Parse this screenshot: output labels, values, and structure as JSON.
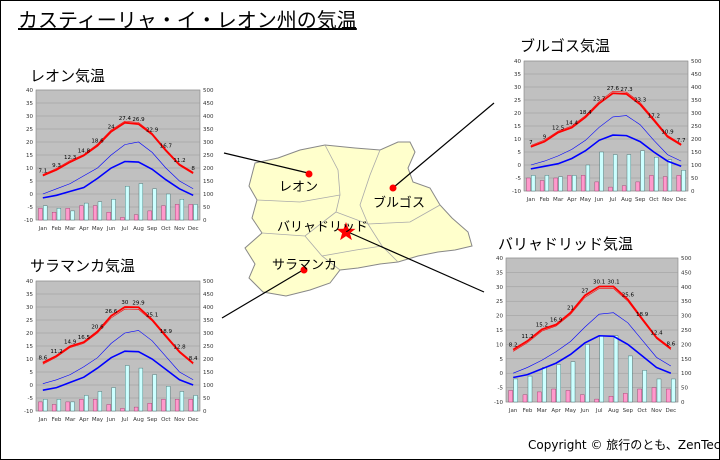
{
  "page": {
    "title": "カスティーリャ・イ・レオン州の気温",
    "copyright": "Copyright © 旅行のとも、ZenTech"
  },
  "map": {
    "cities": [
      "レオン",
      "ブルゴス",
      "バリャドリッド",
      "サラマンカ"
    ]
  },
  "colors": {
    "plot_bg": "#c0c0c0",
    "max_line": "#ff0000",
    "min_line": "#0000ff",
    "bar_light": "#ccffff",
    "bar_pink": "#ff99cc",
    "map_fill": "#ffffcc"
  },
  "chart_data": [
    {
      "type": "line",
      "title": "レオン気温",
      "categories": [
        "Jan",
        "Feb",
        "Mar",
        "Apr",
        "May",
        "Jun",
        "Jul",
        "Aug",
        "Sep",
        "Oct",
        "Nov",
        "Dec"
      ],
      "ylim": [
        -10,
        40
      ],
      "y2lim": [
        0,
        500
      ],
      "yticks": [
        -10,
        -5,
        0,
        5,
        10,
        15,
        20,
        25,
        30,
        35,
        40
      ],
      "y2ticks": [
        0,
        50,
        100,
        150,
        200,
        250,
        300,
        350,
        400,
        450,
        500
      ],
      "grid": true,
      "series": [
        {
          "values": [
            7.1,
            9.3,
            12.3,
            14.8,
            18.6,
            24,
            27.4,
            26.9,
            22.9,
            16.7,
            11.2,
            8
          ]
        },
        {
          "values": [
            7.5,
            9.8,
            12.9,
            15.2,
            19.2,
            24.6,
            28,
            27.5,
            23.4,
            17.2,
            11.6,
            8.4
          ]
        },
        {
          "values": [
            -1.5,
            -0.5,
            1,
            2.5,
            6,
            10,
            12.5,
            12.3,
            9.5,
            5.5,
            2,
            -0.5
          ]
        },
        {
          "values": [
            0,
            2,
            4,
            7,
            10,
            15,
            19,
            20,
            16,
            10,
            5,
            2
          ]
        },
        {
          "values": [
            55,
            45,
            35,
            65,
            70,
            80,
            130,
            140,
            120,
            100,
            80,
            60
          ]
        },
        {
          "values": [
            45,
            30,
            45,
            55,
            55,
            30,
            10,
            20,
            35,
            55,
            60,
            60
          ]
        }
      ],
      "data_labels": [
        "7.1",
        "9.3",
        "12.3",
        "14.8",
        "18.6",
        "24",
        "27.4",
        "26.9",
        "22.9",
        "16.7",
        "11.2",
        "8"
      ]
    },
    {
      "type": "line",
      "title": "ブルゴス気温",
      "categories": [
        "Jan",
        "Feb",
        "Mar",
        "Apr",
        "May",
        "Jun",
        "Jul",
        "Aug",
        "Sep",
        "Oct",
        "Nov",
        "Dec"
      ],
      "ylim": [
        -10,
        40
      ],
      "y2lim": [
        0,
        500
      ],
      "yticks": [
        -10,
        -5,
        0,
        5,
        10,
        15,
        20,
        25,
        30,
        35,
        40
      ],
      "y2ticks": [
        0,
        50,
        100,
        150,
        200,
        250,
        300,
        350,
        400,
        450,
        500
      ],
      "grid": true,
      "series": [
        {
          "values": [
            7,
            9,
            12.5,
            14.4,
            18.4,
            23.7,
            27.6,
            27.3,
            23.3,
            17.2,
            10.9,
            7.7
          ]
        },
        {
          "values": [
            7.5,
            9.6,
            13,
            15,
            19,
            24.4,
            28.4,
            28,
            24,
            17.8,
            11.4,
            8.1
          ]
        },
        {
          "values": [
            -1.5,
            -0.5,
            0.5,
            2.5,
            5.5,
            9.5,
            11.5,
            11.3,
            9,
            5,
            1.5,
            -0.5
          ]
        },
        {
          "values": [
            0,
            1.5,
            3.5,
            6,
            9.5,
            14.5,
            18.5,
            19,
            15.5,
            9.5,
            4,
            1.5
          ]
        },
        {
          "values": [
            60,
            60,
            55,
            60,
            100,
            150,
            140,
            140,
            155,
            130,
            120,
            80
          ]
        },
        {
          "values": [
            50,
            40,
            50,
            60,
            60,
            35,
            15,
            20,
            35,
            60,
            55,
            60
          ]
        }
      ],
      "data_labels": [
        "7",
        "9",
        "12.5",
        "14.4",
        "18.4",
        "23.7",
        "27.6",
        "27.3",
        "23.3",
        "17.2",
        "10.9",
        "7.7"
      ]
    },
    {
      "type": "line",
      "title": "サラマンカ気温",
      "categories": [
        "Jan",
        "Feb",
        "Mar",
        "Apr",
        "May",
        "Jun",
        "Jul",
        "Aug",
        "Sep",
        "Oct",
        "Nov",
        "Dec"
      ],
      "ylim": [
        -10,
        40
      ],
      "y2lim": [
        0,
        500
      ],
      "yticks": [
        -10,
        -5,
        0,
        5,
        10,
        15,
        20,
        25,
        30,
        35,
        40
      ],
      "y2ticks": [
        0,
        50,
        100,
        150,
        200,
        250,
        300,
        350,
        400,
        450,
        500
      ],
      "grid": true,
      "series": [
        {
          "values": [
            8.6,
            11.2,
            14.9,
            16.5,
            20.6,
            26.6,
            30,
            29.9,
            25.1,
            18.9,
            12.8,
            8.4
          ]
        },
        {
          "values": [
            8,
            10.7,
            14.4,
            16,
            20,
            25.8,
            29.2,
            29.1,
            24.6,
            18.4,
            12.4,
            8
          ]
        },
        {
          "values": [
            -2,
            -1,
            1,
            3,
            6.5,
            10.5,
            13,
            12.8,
            10,
            6,
            2,
            0
          ]
        },
        {
          "values": [
            0.5,
            2,
            4,
            7,
            10.5,
            16,
            20,
            21,
            17,
            11,
            5,
            2
          ]
        },
        {
          "values": [
            45,
            45,
            35,
            60,
            75,
            90,
            175,
            165,
            140,
            95,
            75,
            60
          ]
        },
        {
          "values": [
            35,
            25,
            35,
            45,
            45,
            25,
            10,
            15,
            30,
            45,
            45,
            45
          ]
        }
      ],
      "data_labels": [
        "8.6",
        "11.2",
        "14.9",
        "16.5",
        "20.6",
        "26.6",
        "30",
        "29.9",
        "25.1",
        "18.9",
        "12.8",
        "8.4"
      ]
    },
    {
      "type": "line",
      "title": "バリャドリッド気温",
      "categories": [
        "Jan",
        "Feb",
        "Mar",
        "Apr",
        "May",
        "Jun",
        "Jul",
        "Aug",
        "Sep",
        "Oct",
        "Nov",
        "Dec"
      ],
      "ylim": [
        -10,
        40
      ],
      "y2lim": [
        0,
        500
      ],
      "yticks": [
        -10,
        -5,
        0,
        5,
        10,
        15,
        20,
        25,
        30,
        35,
        40
      ],
      "y2ticks": [
        0,
        50,
        100,
        150,
        200,
        250,
        300,
        350,
        400,
        450,
        500
      ],
      "grid": true,
      "series": [
        {
          "values": [
            8.2,
            11.2,
            15.2,
            16.9,
            21,
            27,
            30.1,
            30.1,
            25.6,
            18.9,
            12.4,
            8.6
          ]
        },
        {
          "values": [
            7.6,
            10.6,
            14.6,
            16.4,
            20.4,
            26.3,
            29.4,
            29.4,
            25,
            18.4,
            12,
            8.2
          ]
        },
        {
          "values": [
            -1.5,
            -0.5,
            1.5,
            3.5,
            6.5,
            10.5,
            13,
            12.8,
            10,
            6,
            2,
            0
          ]
        },
        {
          "values": [
            0,
            2,
            4.5,
            7.5,
            11,
            16,
            20.5,
            21,
            17.5,
            11.5,
            5.5,
            2.5
          ]
        },
        {
          "values": [
            80,
            90,
            120,
            130,
            140,
            200,
            230,
            230,
            160,
            110,
            80,
            80
          ]
        },
        {
          "values": [
            40,
            25,
            35,
            45,
            40,
            25,
            10,
            20,
            30,
            45,
            50,
            45
          ]
        }
      ],
      "data_labels": [
        "8.2",
        "11.2",
        "15.2",
        "16.9",
        "21",
        "27",
        "30.1",
        "30.1",
        "25.6",
        "18.9",
        "12.4",
        "8.6"
      ]
    }
  ]
}
